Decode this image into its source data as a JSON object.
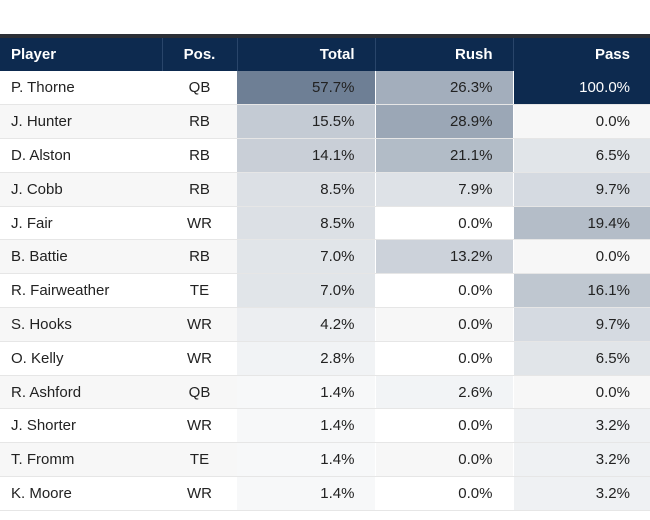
{
  "table": {
    "columns": [
      "Player",
      "Pos.",
      "Total",
      "Rush",
      "Pass"
    ],
    "heat_color": "#0d2a4f",
    "rows": [
      {
        "player": "P. Thorne",
        "pos": "QB",
        "total": "57.7%",
        "rush": "26.3%",
        "pass": "100.0%"
      },
      {
        "player": "J. Hunter",
        "pos": "RB",
        "total": "15.5%",
        "rush": "28.9%",
        "pass": "0.0%"
      },
      {
        "player": "D. Alston",
        "pos": "RB",
        "total": "14.1%",
        "rush": "21.1%",
        "pass": "6.5%"
      },
      {
        "player": "J. Cobb",
        "pos": "RB",
        "total": "8.5%",
        "rush": "7.9%",
        "pass": "9.7%"
      },
      {
        "player": "J. Fair",
        "pos": "WR",
        "total": "8.5%",
        "rush": "0.0%",
        "pass": "19.4%"
      },
      {
        "player": "B. Battie",
        "pos": "RB",
        "total": "7.0%",
        "rush": "13.2%",
        "pass": "0.0%"
      },
      {
        "player": "R. Fairweather",
        "pos": "TE",
        "total": "7.0%",
        "rush": "0.0%",
        "pass": "16.1%"
      },
      {
        "player": "S. Hooks",
        "pos": "WR",
        "total": "4.2%",
        "rush": "0.0%",
        "pass": "9.7%"
      },
      {
        "player": "O. Kelly",
        "pos": "WR",
        "total": "2.8%",
        "rush": "0.0%",
        "pass": "6.5%"
      },
      {
        "player": "R. Ashford",
        "pos": "QB",
        "total": "1.4%",
        "rush": "2.6%",
        "pass": "0.0%"
      },
      {
        "player": "J. Shorter",
        "pos": "WR",
        "total": "1.4%",
        "rush": "0.0%",
        "pass": "3.2%"
      },
      {
        "player": "T. Fromm",
        "pos": "TE",
        "total": "1.4%",
        "rush": "0.0%",
        "pass": "3.2%"
      },
      {
        "player": "K. Moore",
        "pos": "WR",
        "total": "1.4%",
        "rush": "0.0%",
        "pass": "3.2%"
      }
    ]
  }
}
